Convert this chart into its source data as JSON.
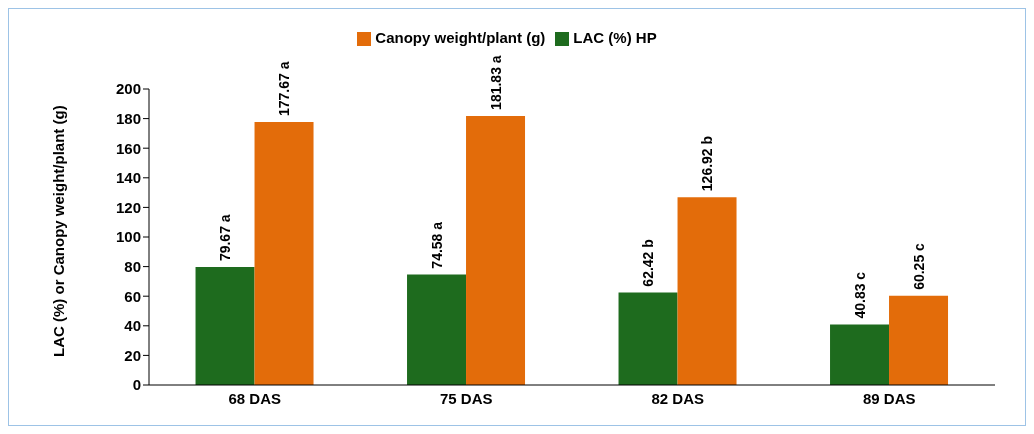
{
  "chart_data": {
    "type": "bar",
    "ylabel": "LAC (%) or Canopy weight/plant (g)",
    "categories": [
      "68 DAS",
      "75 DAS",
      "82 DAS",
      "89 DAS"
    ],
    "series": [
      {
        "name": "LAC (%) HP",
        "color": "#1e6b1e",
        "values": [
          79.67,
          74.58,
          62.42,
          40.83
        ],
        "value_labels": [
          "79.67 a",
          "74.58 a",
          "62.42 b",
          "40.83 c"
        ]
      },
      {
        "name": "Canopy weight/plant (g)",
        "color": "#e36c0a",
        "values": [
          177.67,
          181.83,
          126.92,
          60.25
        ],
        "value_labels": [
          "177.67 a",
          "181.83 a",
          "126.92 b",
          "60.25 c"
        ]
      }
    ],
    "ylim": [
      0,
      200
    ],
    "yticks": [
      0,
      20,
      40,
      60,
      80,
      100,
      120,
      140,
      160,
      180,
      200
    ],
    "grid": false,
    "legend": "top"
  }
}
